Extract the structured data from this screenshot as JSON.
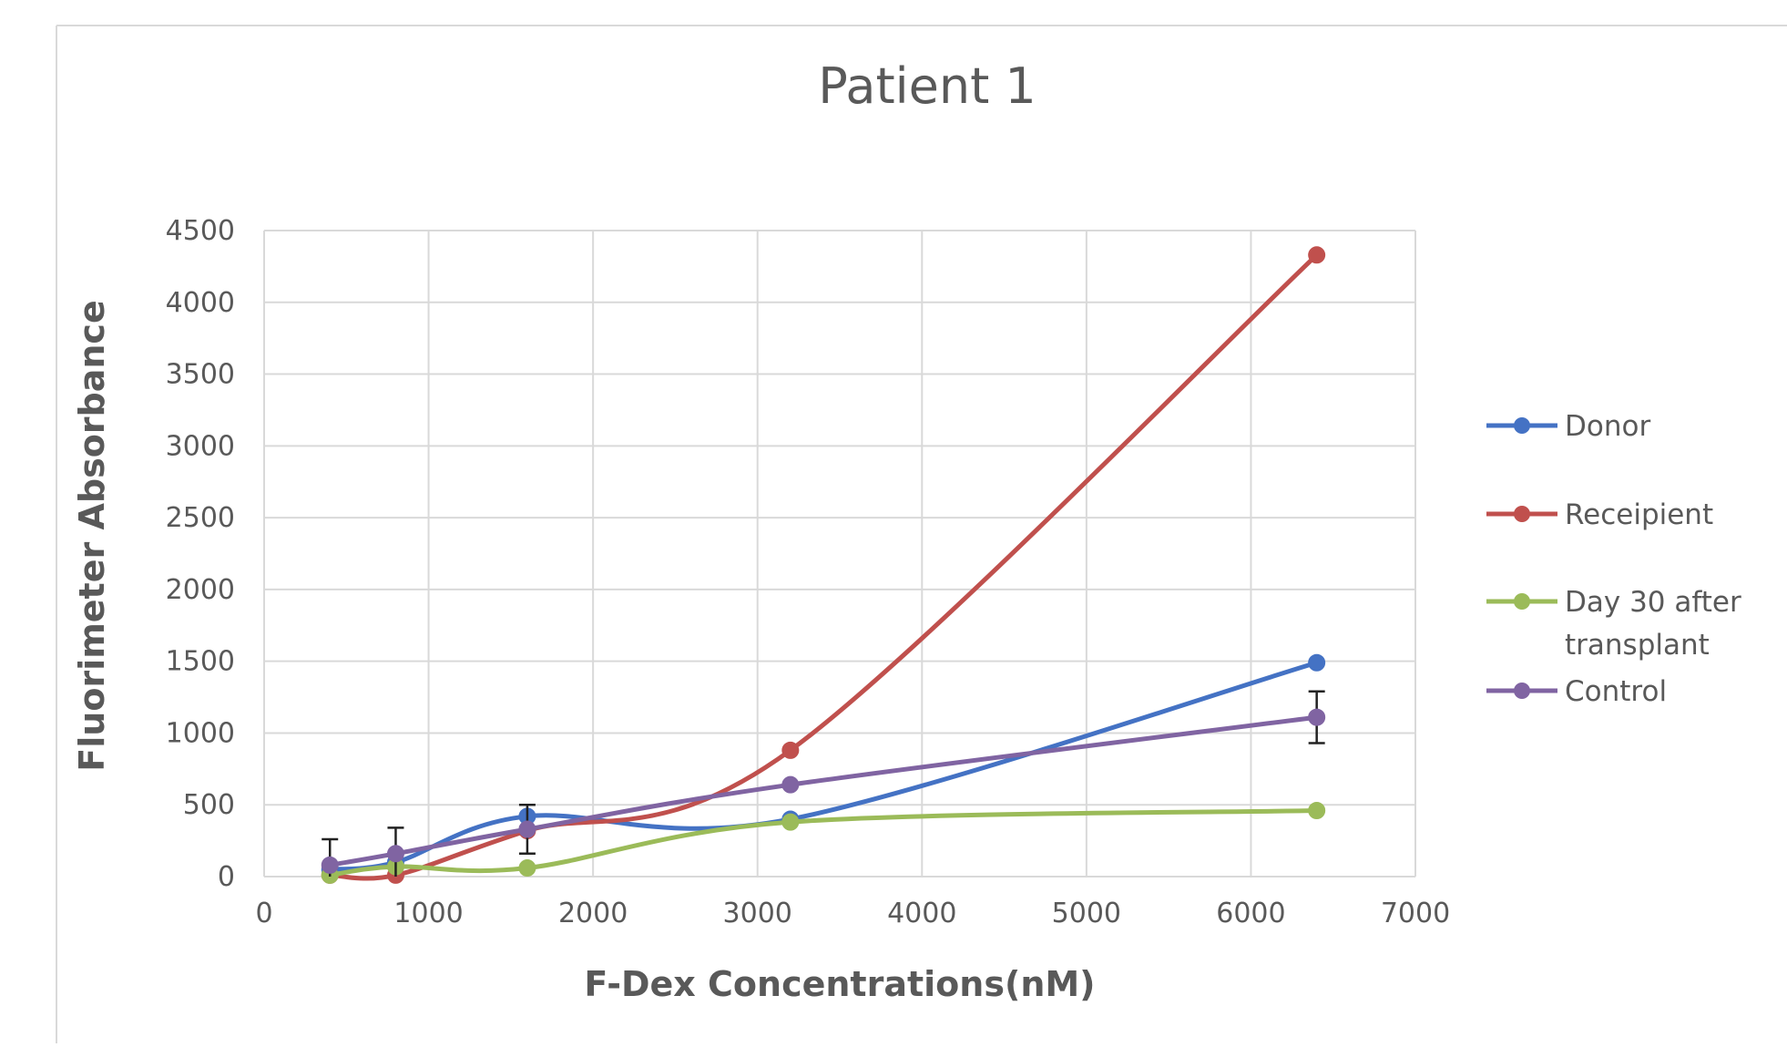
{
  "chart_data": {
    "type": "line",
    "title": "Patient 1",
    "xlabel": "F-Dex Concentrations(nM)",
    "ylabel": "Fluorimeter Absorbance",
    "xlim": [
      0,
      7000
    ],
    "ylim": [
      0,
      4500
    ],
    "x_ticks": [
      "0",
      "1000",
      "2000",
      "3000",
      "4000",
      "5000",
      "6000",
      "7000"
    ],
    "y_ticks": [
      "0",
      "500",
      "1000",
      "1500",
      "2000",
      "2500",
      "3000",
      "3500",
      "4000",
      "4500"
    ],
    "grid": true,
    "smooth": true,
    "legend_position": "right",
    "series": [
      {
        "name": "Donor",
        "color": "#4472C4",
        "x": [
          400,
          800,
          1600,
          3200,
          6400
        ],
        "y": [
          50,
          100,
          420,
          400,
          1490
        ]
      },
      {
        "name": "Receipient",
        "color": "#C0504D",
        "x": [
          400,
          800,
          1600,
          3200,
          6400
        ],
        "y": [
          10,
          10,
          320,
          880,
          4330
        ]
      },
      {
        "name": "Day 30 after transplant",
        "name_lines": [
          "Day 30 after",
          "transplant"
        ],
        "color": "#9BBB59",
        "x": [
          400,
          800,
          1600,
          3200,
          6400
        ],
        "y": [
          10,
          70,
          60,
          380,
          460
        ]
      },
      {
        "name": "Control",
        "color": "#8064A2",
        "x": [
          400,
          800,
          1600,
          3200,
          6400
        ],
        "y": [
          80,
          160,
          330,
          640,
          1110
        ],
        "error": [
          180,
          180,
          170,
          0,
          180
        ]
      }
    ]
  }
}
